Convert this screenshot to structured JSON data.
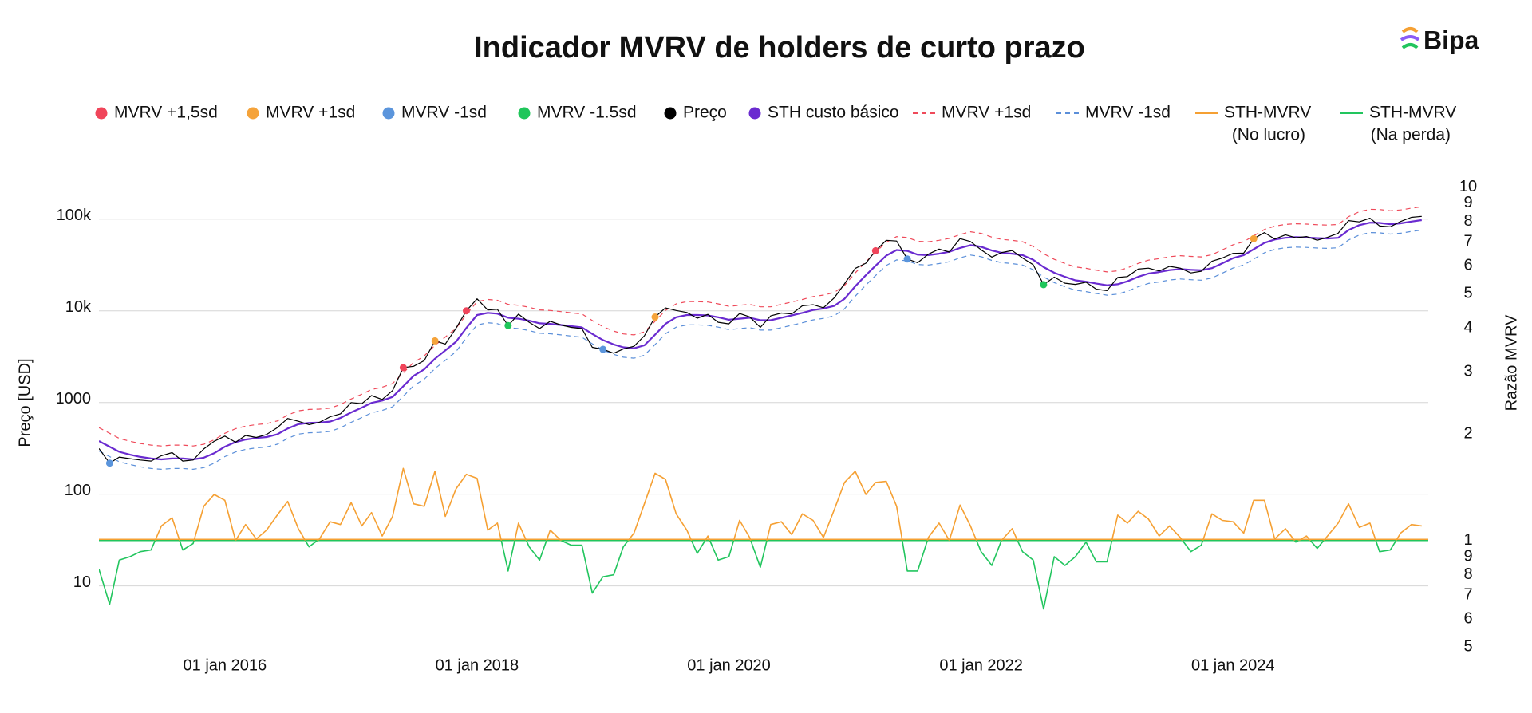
{
  "chart_data": {
    "type": "line",
    "title": "Indicador MVRV de holders de curto prazo",
    "brand": "Bipa",
    "ylabel": "Preço [USD]",
    "y2label": "Razão MVRV",
    "log_y": true,
    "log_y2": true,
    "grid": true,
    "legend": "top",
    "xlim": [
      "2015-01-01",
      "2025-07-20"
    ],
    "ylim": [
      2,
      250000
    ],
    "y2lim": [
      0.49,
      10.3
    ],
    "xticks": [
      {
        "value": "2016-01-01",
        "label": "01 jan 2016"
      },
      {
        "value": "2018-01-01",
        "label": "01 jan 2018"
      },
      {
        "value": "2020-01-01",
        "label": "01 jan 2020"
      },
      {
        "value": "2022-01-01",
        "label": "01 jan 2022"
      },
      {
        "value": "2024-01-01",
        "label": "01 jan 2024"
      }
    ],
    "yticks": [
      10,
      100,
      1000,
      {
        "value": 10000,
        "label": "10k"
      },
      {
        "value": 100000,
        "label": "100k"
      }
    ],
    "y2ticks": [
      10,
      9,
      8,
      7,
      6,
      5,
      4,
      3,
      2,
      1,
      {
        "value": 0.9,
        "label": "9"
      },
      {
        "value": 0.8,
        "label": "8"
      },
      {
        "value": 0.7,
        "label": "7"
      },
      {
        "value": 0.6,
        "label": "6"
      },
      {
        "value": 0.5,
        "label": "5"
      }
    ],
    "x": [
      "2015-01-01",
      "2015-02-01",
      "2015-03-01",
      "2015-04-01",
      "2015-05-01",
      "2015-06-01",
      "2015-07-01",
      "2015-08-01",
      "2015-09-01",
      "2015-10-01",
      "2015-11-01",
      "2015-12-01",
      "2016-01-01",
      "2016-02-01",
      "2016-03-01",
      "2016-04-01",
      "2016-05-01",
      "2016-06-01",
      "2016-07-01",
      "2016-08-01",
      "2016-09-01",
      "2016-10-01",
      "2016-11-01",
      "2016-12-01",
      "2017-01-01",
      "2017-02-01",
      "2017-03-01",
      "2017-04-01",
      "2017-05-01",
      "2017-06-01",
      "2017-07-01",
      "2017-08-01",
      "2017-09-01",
      "2017-10-01",
      "2017-11-01",
      "2017-12-01",
      "2018-01-01",
      "2018-02-01",
      "2018-03-01",
      "2018-04-01",
      "2018-05-01",
      "2018-06-01",
      "2018-07-01",
      "2018-08-01",
      "2018-09-01",
      "2018-10-01",
      "2018-11-01",
      "2018-12-01",
      "2019-01-01",
      "2019-02-01",
      "2019-03-01",
      "2019-04-01",
      "2019-05-01",
      "2019-06-01",
      "2019-07-01",
      "2019-08-01",
      "2019-09-01",
      "2019-10-01",
      "2019-11-01",
      "2019-12-01",
      "2020-01-01",
      "2020-02-01",
      "2020-03-01",
      "2020-04-01",
      "2020-05-01",
      "2020-06-01",
      "2020-07-01",
      "2020-08-01",
      "2020-09-01",
      "2020-10-01",
      "2020-11-01",
      "2020-12-01",
      "2021-01-01",
      "2021-02-01",
      "2021-03-01",
      "2021-04-01",
      "2021-05-01",
      "2021-06-01",
      "2021-07-01",
      "2021-08-01",
      "2021-09-01",
      "2021-10-01",
      "2021-11-01",
      "2021-12-01",
      "2022-01-01",
      "2022-02-01",
      "2022-03-01",
      "2022-04-01",
      "2022-05-01",
      "2022-06-01",
      "2022-07-01",
      "2022-08-01",
      "2022-09-01",
      "2022-10-01",
      "2022-11-01",
      "2022-12-01",
      "2023-01-01",
      "2023-02-01",
      "2023-03-01",
      "2023-04-01",
      "2023-05-01",
      "2023-06-01",
      "2023-07-01",
      "2023-08-01",
      "2023-09-01",
      "2023-10-01",
      "2023-11-01",
      "2023-12-01",
      "2024-01-01",
      "2024-02-01",
      "2024-03-01",
      "2024-04-01",
      "2024-05-01",
      "2024-06-01",
      "2024-07-01",
      "2024-08-01",
      "2024-09-01",
      "2024-10-01",
      "2024-11-01",
      "2024-12-01",
      "2025-01-01",
      "2025-02-01",
      "2025-03-01",
      "2025-04-01",
      "2025-05-01",
      "2025-06-01",
      "2025-07-01"
    ],
    "series": [
      {
        "name": "MVRV +1,5sd",
        "kind": "scatter",
        "color": "#f0455a",
        "x": [
          "2017-06-01",
          "2017-12-01",
          "2021-03-01"
        ],
        "values": [
          2400,
          10000,
          45200
        ]
      },
      {
        "name": "MVRV +1sd",
        "kind": "scatter",
        "color": "#f5a33a",
        "x": [
          "2017-09-01",
          "2019-06-01",
          "2024-03-01"
        ],
        "values": [
          4700,
          8550,
          61200
        ]
      },
      {
        "name": "MVRV -1sd",
        "kind": "scatter",
        "color": "#5b95dc",
        "x": [
          "2015-02-01",
          "2019-01-01",
          "2021-06-01"
        ],
        "values": [
          218,
          3800,
          36700
        ]
      },
      {
        "name": "MVRV -1.5sd",
        "kind": "scatter",
        "color": "#1fc65a",
        "x": [
          "2018-04-01",
          "2022-07-01"
        ],
        "values": [
          6900,
          19300
        ]
      },
      {
        "name": "Preço",
        "kind": "line",
        "color": "#000000",
        "width": 1.2,
        "values": [
          315,
          218,
          254,
          244,
          236,
          230,
          263,
          284,
          230,
          236,
          312,
          378,
          430,
          369,
          437,
          416,
          448,
          531,
          670,
          624,
          574,
          609,
          698,
          753,
          998,
          970,
          1190,
          1080,
          1350,
          2400,
          2480,
          2870,
          4700,
          4340,
          6450,
          10000,
          13500,
          10200,
          10400,
          6900,
          9200,
          7500,
          6400,
          7700,
          7000,
          6600,
          6400,
          4000,
          3800,
          3450,
          3830,
          4100,
          5350,
          8550,
          10750,
          10080,
          9600,
          8300,
          9150,
          7500,
          7200,
          9350,
          8600,
          6600,
          8800,
          9450,
          9230,
          11350,
          11650,
          10800,
          13800,
          19700,
          29000,
          33100,
          45200,
          58800,
          57700,
          36700,
          33500,
          41500,
          47100,
          43800,
          61300,
          57000,
          46300,
          38500,
          43200,
          45500,
          37700,
          31800,
          19300,
          23300,
          20000,
          19400,
          20500,
          17200,
          16600,
          23100,
          23600,
          28500,
          29200,
          27200,
          30500,
          29200,
          25900,
          27000,
          34700,
          37700,
          42300,
          42600,
          61200,
          71300,
          60600,
          67500,
          62700,
          64600,
          58900,
          63300,
          70200,
          96400,
          93400,
          102400,
          84300,
          82500,
          94200,
          104600,
          107100
        ]
      },
      {
        "name": "STH custo básico",
        "kind": "line",
        "color": "#6a2bd0",
        "width": 2.2,
        "values": [
          380,
          330,
          290,
          270,
          255,
          245,
          240,
          245,
          245,
          240,
          250,
          280,
          330,
          370,
          395,
          410,
          420,
          450,
          520,
          580,
          600,
          605,
          620,
          680,
          780,
          880,
          990,
          1050,
          1150,
          1500,
          1950,
          2300,
          3000,
          3700,
          4600,
          6500,
          9000,
          9500,
          9300,
          8400,
          8200,
          7800,
          7300,
          7200,
          7000,
          6800,
          6600,
          5600,
          4800,
          4300,
          4000,
          3900,
          4200,
          5500,
          7200,
          8500,
          9000,
          9000,
          8900,
          8500,
          8000,
          8200,
          8400,
          7900,
          7900,
          8400,
          8900,
          9500,
          10200,
          10600,
          11300,
          13500,
          18500,
          24500,
          31000,
          40000,
          46000,
          45000,
          41000,
          40500,
          42000,
          44000,
          48500,
          52000,
          50000,
          45500,
          43000,
          42000,
          40500,
          36000,
          30000,
          26000,
          23500,
          21500,
          20800,
          19800,
          19000,
          19500,
          21000,
          23500,
          25500,
          26500,
          27800,
          28500,
          28000,
          27700,
          29200,
          33000,
          37500,
          40500,
          47000,
          55000,
          60000,
          62500,
          63500,
          63000,
          62000,
          61500,
          62500,
          76000,
          86000,
          91500,
          91000,
          88000,
          90000,
          94000,
          97500
        ]
      },
      {
        "name": "MVRV +1sd",
        "kind": "line",
        "dash": true,
        "color": "#ef4a5a",
        "width": 1.2,
        "values": [
          532,
          462,
          406,
          378,
          357,
          343,
          336,
          343,
          343,
          336,
          350,
          392,
          462,
          518,
          553,
          574,
          588,
          630,
          728,
          812,
          840,
          847,
          868,
          952,
          1092,
          1232,
          1386,
          1470,
          1610,
          2100,
          2730,
          3220,
          4200,
          5180,
          6440,
          9100,
          12600,
          13300,
          13020,
          11760,
          11480,
          10920,
          10220,
          10080,
          9800,
          9520,
          9240,
          7840,
          6720,
          6020,
          5600,
          5460,
          5880,
          7700,
          10080,
          11900,
          12600,
          12600,
          12460,
          11900,
          11200,
          11480,
          11760,
          11060,
          11060,
          11760,
          12460,
          13300,
          14280,
          14840,
          15820,
          18900,
          25900,
          34300,
          43400,
          56000,
          64400,
          63000,
          57400,
          56700,
          58800,
          61600,
          67900,
          72800,
          70000,
          63700,
          60200,
          58800,
          56700,
          50400,
          42000,
          36400,
          32900,
          30100,
          29120,
          27720,
          26600,
          27300,
          29400,
          32900,
          35700,
          37100,
          38920,
          39900,
          39200,
          38780,
          40880,
          46200,
          52500,
          56700,
          65800,
          77000,
          84000,
          87500,
          88900,
          88200,
          86800,
          86100,
          87500,
          106400,
          120400,
          128100,
          127400,
          123200,
          126000,
          131600,
          136500
        ]
      },
      {
        "name": "MVRV -1sd",
        "kind": "line",
        "dash": true,
        "color": "#5b8fd9",
        "width": 1.2,
        "values": [
          296,
          257,
          226,
          211,
          199,
          191,
          187,
          191,
          191,
          187,
          195,
          218,
          257,
          289,
          308,
          320,
          328,
          351,
          406,
          452,
          468,
          472,
          484,
          530,
          608,
          686,
          772,
          819,
          897,
          1170,
          1521,
          1794,
          2340,
          2886,
          3588,
          5070,
          7020,
          7410,
          7254,
          6552,
          6396,
          6084,
          5694,
          5616,
          5460,
          5304,
          5148,
          4368,
          3744,
          3354,
          3120,
          3042,
          3276,
          4290,
          5616,
          6630,
          7020,
          7020,
          6942,
          6630,
          6240,
          6396,
          6552,
          6162,
          6162,
          6552,
          6942,
          7410,
          7956,
          8268,
          8814,
          10530,
          14430,
          19110,
          24180,
          31200,
          35880,
          35100,
          31980,
          31590,
          32760,
          34320,
          37830,
          40560,
          39000,
          35490,
          33540,
          32760,
          31590,
          28080,
          23400,
          20280,
          18330,
          16770,
          16224,
          15444,
          14820,
          15210,
          16380,
          18330,
          19890,
          20670,
          21684,
          22230,
          21840,
          21606,
          22776,
          25740,
          29250,
          31590,
          36660,
          42900,
          46800,
          48750,
          49530,
          49140,
          48360,
          47970,
          48750,
          59280,
          67080,
          71370,
          70980,
          68640,
          70200,
          73320,
          76050
        ]
      },
      {
        "name": "STH-MVRV",
        "kind": "ratio",
        "axis": "y2",
        "threshold": 1,
        "legend_labels": [
          "(No lucro)",
          "(Na perda)"
        ],
        "colors": [
          "#f5a033",
          "#22c55e"
        ],
        "width": 1.6,
        "values": [
          0.83,
          0.66,
          0.88,
          0.9,
          0.93,
          0.94,
          1.1,
          1.16,
          0.94,
          0.98,
          1.25,
          1.35,
          1.3,
          1.0,
          1.11,
          1.01,
          1.07,
          1.18,
          1.29,
          1.08,
          0.96,
          1.01,
          1.13,
          1.11,
          1.28,
          1.1,
          1.2,
          1.03,
          1.17,
          1.6,
          1.27,
          1.25,
          1.57,
          1.17,
          1.4,
          1.54,
          1.5,
          1.07,
          1.12,
          0.82,
          1.12,
          0.96,
          0.88,
          1.07,
          1.0,
          0.97,
          0.97,
          0.71,
          0.79,
          0.8,
          0.96,
          1.05,
          1.27,
          1.55,
          1.49,
          1.19,
          1.07,
          0.92,
          1.03,
          0.88,
          0.9,
          1.14,
          1.02,
          0.84,
          1.11,
          1.13,
          1.04,
          1.19,
          1.14,
          1.02,
          1.22,
          1.46,
          1.57,
          1.35,
          1.46,
          1.47,
          1.25,
          0.82,
          0.82,
          1.02,
          1.12,
          1.0,
          1.26,
          1.1,
          0.93,
          0.85,
          1.0,
          1.08,
          0.93,
          0.88,
          0.64,
          0.9,
          0.85,
          0.9,
          0.99,
          0.87,
          0.87,
          1.18,
          1.12,
          1.21,
          1.15,
          1.03,
          1.1,
          1.02,
          0.93,
          0.97,
          1.19,
          1.14,
          1.13,
          1.05,
          1.3,
          1.3,
          1.01,
          1.08,
          0.99,
          1.03,
          0.95,
          1.03,
          1.12,
          1.27,
          1.09,
          1.12,
          0.93,
          0.94,
          1.05,
          1.11,
          1.1
        ]
      }
    ]
  }
}
